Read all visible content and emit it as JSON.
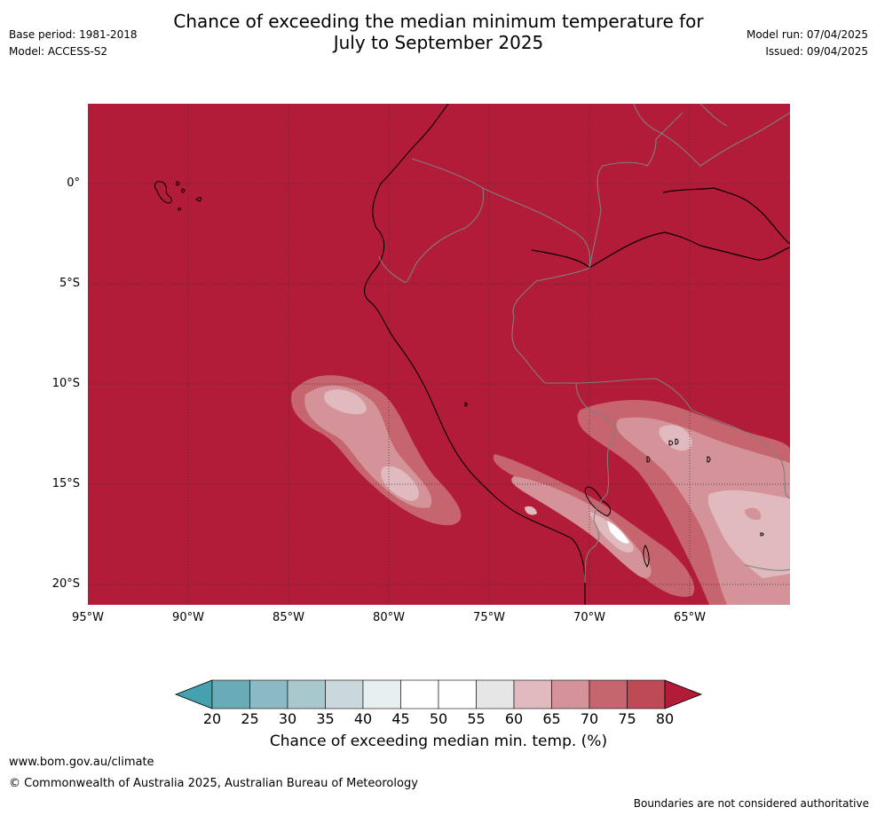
{
  "header": {
    "title_line1": "Chance of exceeding the median minimum temperature for",
    "title_line2": "July to September 2025",
    "base_period": "Base period: 1981-2018",
    "model": "Model: ACCESS-S2",
    "model_run": "Model run: 07/04/2025",
    "issued": "Issued: 09/04/2025"
  },
  "map": {
    "lat_labels": [
      "0°",
      "5°S",
      "10°S",
      "15°S",
      "20°S"
    ],
    "lon_labels": [
      "95°W",
      "90°W",
      "85°W",
      "80°W",
      "75°W",
      "70°W",
      "65°W"
    ],
    "background_category": 80
  },
  "colorbar": {
    "ticks": [
      "20",
      "25",
      "30",
      "35",
      "40",
      "45",
      "50",
      "55",
      "60",
      "65",
      "70",
      "75",
      "80"
    ],
    "colors": [
      "#69acb8",
      "#8bbac4",
      "#a8c8cd",
      "#c8d8dc",
      "#e8eff1",
      "#ffffff",
      "#ffffff",
      "#e6e6e6",
      "#e0babe",
      "#d49399",
      "#c7656f",
      "#be4a56"
    ],
    "under_color": "#43a1b0",
    "over_color": "#b21c39",
    "title": "Chance of exceeding median min. temp. (%)"
  },
  "footer": {
    "website": "www.bom.gov.au/climate",
    "copyright": "© Commonwealth of Australia 2025, Australian Bureau of Meteorology",
    "disclaimer": "Boundaries are not considered authoritative"
  }
}
